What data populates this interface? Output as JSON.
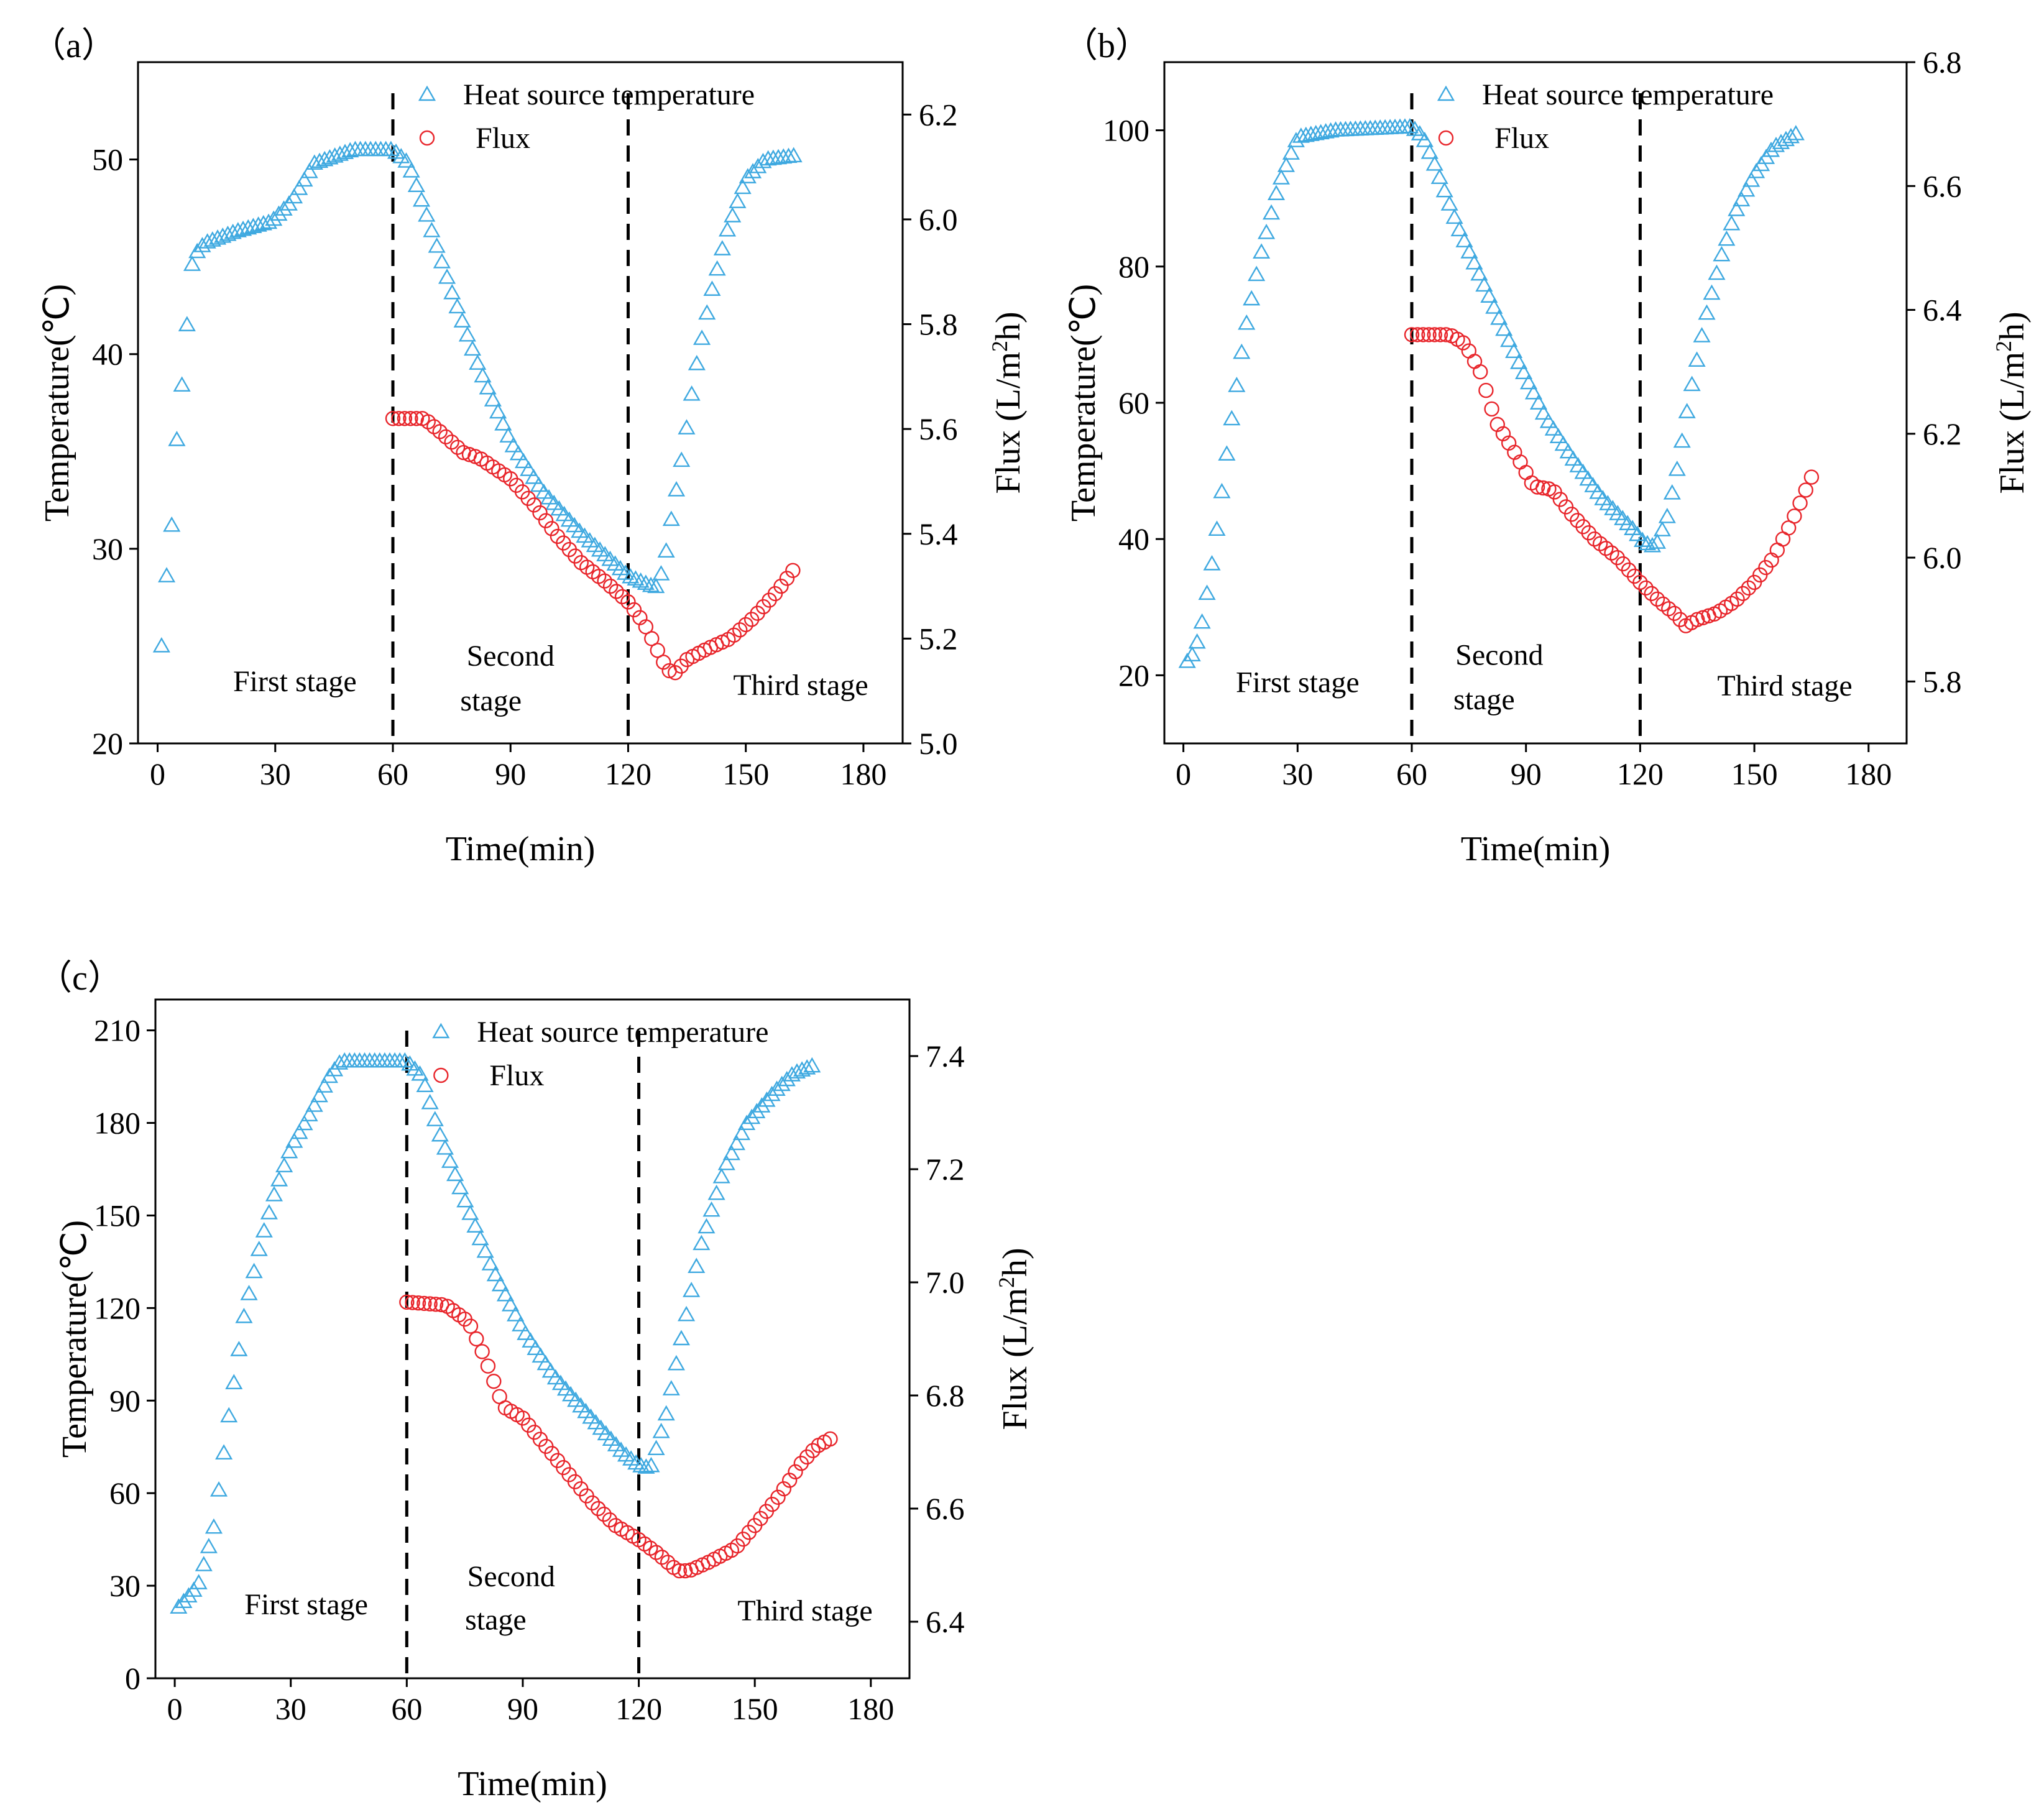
{
  "colors": {
    "temperature": "#3fa9e0",
    "flux": "#e8252b",
    "axis": "#000000"
  },
  "chart_data": [
    {
      "type": "scatter",
      "panel_label": "（a）",
      "xlabel": "Time(min)",
      "ylabel": "Temperature(℃)",
      "y2label": "Flux (L/m²h)",
      "y2label_parts": {
        "base": "Flux (L/m",
        "sup": "2",
        "tail": "h)"
      },
      "xlim": [
        -5,
        190
      ],
      "ylim": [
        20,
        55
      ],
      "y2lim": [
        5.0,
        6.3
      ],
      "xticks": [
        0,
        30,
        60,
        90,
        120,
        150,
        180
      ],
      "yticks": [
        20,
        30,
        40,
        50
      ],
      "y2ticks": [
        5.0,
        5.2,
        5.4,
        5.6,
        5.8,
        6.0,
        6.2
      ],
      "y2tick_labels": [
        "5.0",
        "5.2",
        "5.4",
        "5.6",
        "5.8",
        "6.0",
        "6.2"
      ],
      "stage_lines_x": [
        60,
        120
      ],
      "stages": [
        {
          "text": "First stage",
          "x": 35,
          "y": 23.2
        },
        {
          "text": "Second",
          "x": 90,
          "y": 24.5
        },
        {
          "text": "stage",
          "x": 85,
          "y": 22.2
        },
        {
          "text": "Third stage",
          "x": 164,
          "y": 23.0
        }
      ],
      "legend": [
        "Heat source temperature",
        "Flux"
      ],
      "series": [
        {
          "name": "Heat source temperature",
          "axis": "left",
          "marker": "triangle",
          "knots": [
            [
              1,
              25
            ],
            [
              2,
              28
            ],
            [
              3,
              30
            ],
            [
              4,
              32
            ],
            [
              5,
              36
            ],
            [
              6,
              38
            ],
            [
              7,
              40
            ],
            [
              8,
              43
            ],
            [
              9,
              45
            ],
            [
              12,
              45.7
            ],
            [
              20,
              46.3
            ],
            [
              29,
              46.8
            ],
            [
              34,
              47.8
            ],
            [
              40,
              49.8
            ],
            [
              50,
              50.5
            ],
            [
              60,
              50.5
            ],
            [
              64,
              49.8
            ],
            [
              68,
              47.5
            ],
            [
              75,
              43.2
            ],
            [
              82,
              39.3
            ],
            [
              90,
              35.5
            ],
            [
              98,
              33
            ],
            [
              108,
              30.8
            ],
            [
              120,
              28.6
            ],
            [
              127,
              28
            ],
            [
              129,
              29
            ],
            [
              131,
              31.5
            ],
            [
              134,
              35
            ],
            [
              137,
              39
            ],
            [
              141,
              43
            ],
            [
              145,
              46.2
            ],
            [
              150,
              49
            ],
            [
              155,
              50
            ],
            [
              163,
              50.2
            ]
          ]
        },
        {
          "name": "Flux",
          "axis": "right",
          "marker": "circle",
          "knots": [
            [
              60,
              5.62
            ],
            [
              68,
              5.62
            ],
            [
              72,
              5.595
            ],
            [
              78,
              5.555
            ],
            [
              82,
              5.545
            ],
            [
              90,
              5.505
            ],
            [
              96,
              5.455
            ],
            [
              102,
              5.395
            ],
            [
              108,
              5.345
            ],
            [
              114,
              5.31
            ],
            [
              120,
              5.27
            ],
            [
              124,
              5.23
            ],
            [
              130,
              5.14
            ],
            [
              132,
              5.135
            ],
            [
              135,
              5.16
            ],
            [
              140,
              5.18
            ],
            [
              146,
              5.2
            ],
            [
              152,
              5.24
            ],
            [
              158,
              5.29
            ],
            [
              162,
              5.33
            ]
          ]
        }
      ]
    },
    {
      "type": "scatter",
      "panel_label": "（b）",
      "xlabel": "Time(min)",
      "ylabel": "Temperature(℃)",
      "y2label": "Flux (L/m²h)",
      "y2label_parts": {
        "base": "Flux (L/m",
        "sup": "2",
        "tail": "h)"
      },
      "xlim": [
        -5,
        190
      ],
      "ylim": [
        10,
        110
      ],
      "y2lim": [
        5.7,
        6.8
      ],
      "xticks": [
        0,
        30,
        60,
        90,
        120,
        150,
        180
      ],
      "yticks": [
        20,
        40,
        60,
        80,
        100
      ],
      "y2ticks": [
        5.8,
        6.0,
        6.2,
        6.4,
        6.6,
        6.8
      ],
      "y2tick_labels": [
        "5.8",
        "6.0",
        "6.2",
        "6.4",
        "6.6",
        "6.8"
      ],
      "stage_lines_x": [
        60,
        120
      ],
      "stages": [
        {
          "text": "First stage",
          "x": 30,
          "y": 19
        },
        {
          "text": "Second",
          "x": 83,
          "y": 23
        },
        {
          "text": "stage",
          "x": 79,
          "y": 16.5
        },
        {
          "text": "Third stage",
          "x": 158,
          "y": 18.5
        }
      ],
      "legend": [
        "Heat source temperature",
        "Flux"
      ],
      "series": [
        {
          "name": "Heat source temperature",
          "axis": "left",
          "marker": "triangle",
          "knots": [
            [
              1,
              22
            ],
            [
              3,
              23.5
            ],
            [
              5,
              28
            ],
            [
              8,
              38
            ],
            [
              12,
              55
            ],
            [
              16,
              70
            ],
            [
              20,
              81
            ],
            [
              25,
              92
            ],
            [
              30,
              99
            ],
            [
              40,
              100
            ],
            [
              60,
              100.5
            ],
            [
              63,
              99
            ],
            [
              66,
              95
            ],
            [
              72,
              86
            ],
            [
              80,
              76
            ],
            [
              88,
              66
            ],
            [
              95,
              58
            ],
            [
              102,
              52
            ],
            [
              110,
              46
            ],
            [
              118,
              41.5
            ],
            [
              121,
              39.5
            ],
            [
              124,
              38.8
            ],
            [
              127,
              43
            ],
            [
              130,
              51
            ],
            [
              133,
              61
            ],
            [
              137,
              72
            ],
            [
              141,
              81
            ],
            [
              145,
              88
            ],
            [
              150,
              93.5
            ],
            [
              155,
              97.5
            ],
            [
              161,
              99.5
            ]
          ]
        },
        {
          "name": "Flux",
          "axis": "right",
          "marker": "circle",
          "knots": [
            [
              60,
              6.36
            ],
            [
              70,
              6.36
            ],
            [
              74,
              6.345
            ],
            [
              78,
              6.3
            ],
            [
              82,
              6.22
            ],
            [
              88,
              6.16
            ],
            [
              92,
              6.115
            ],
            [
              97,
              6.11
            ],
            [
              102,
              6.07
            ],
            [
              108,
              6.03
            ],
            [
              114,
              6.0
            ],
            [
              120,
              5.96
            ],
            [
              125,
              5.93
            ],
            [
              129,
              5.91
            ],
            [
              132,
              5.89
            ],
            [
              135,
              5.9
            ],
            [
              140,
              5.91
            ],
            [
              145,
              5.93
            ],
            [
              150,
              5.96
            ],
            [
              155,
              6.0
            ],
            [
              160,
              6.06
            ],
            [
              165,
              6.13
            ]
          ]
        }
      ]
    },
    {
      "type": "scatter",
      "panel_label": "（c）",
      "xlabel": "Time(min)",
      "ylabel": "Temperature(℃)",
      "y2label": "Flux (L/m²h)",
      "y2label_parts": {
        "base": "Flux (L/m",
        "sup": "2",
        "tail": "h)"
      },
      "xlim": [
        -5,
        190
      ],
      "ylim": [
        0,
        220
      ],
      "y2lim": [
        6.3,
        7.5
      ],
      "xticks": [
        0,
        30,
        60,
        90,
        120,
        150,
        180
      ],
      "yticks": [
        0,
        30,
        60,
        90,
        120,
        150,
        180,
        210
      ],
      "y2ticks": [
        6.4,
        6.6,
        6.8,
        7.0,
        7.2,
        7.4
      ],
      "y2tick_labels": [
        "6.4",
        "6.6",
        "6.8",
        "7.0",
        "7.2",
        "7.4"
      ],
      "stage_lines_x": [
        60,
        120
      ],
      "stages": [
        {
          "text": "First stage",
          "x": 34,
          "y": 24
        },
        {
          "text": "Second",
          "x": 87,
          "y": 33
        },
        {
          "text": "stage",
          "x": 83,
          "y": 19
        },
        {
          "text": "Third stage",
          "x": 163,
          "y": 22
        }
      ],
      "legend": [
        "Heat source temperature",
        "Flux"
      ],
      "series": [
        {
          "name": "Heat source temperature",
          "axis": "left",
          "marker": "triangle",
          "knots": [
            [
              1,
              23
            ],
            [
              6,
              30
            ],
            [
              10,
              48
            ],
            [
              14,
              85
            ],
            [
              18,
              118
            ],
            [
              22,
              140
            ],
            [
              26,
              158
            ],
            [
              30,
              172
            ],
            [
              35,
              183
            ],
            [
              40,
              195
            ],
            [
              43,
              200
            ],
            [
              60,
              200
            ],
            [
              64,
              195
            ],
            [
              68,
              178
            ],
            [
              75,
              155
            ],
            [
              82,
              133
            ],
            [
              90,
              113
            ],
            [
              98,
              98
            ],
            [
              108,
              84
            ],
            [
              116,
              73
            ],
            [
              120,
              69
            ],
            [
              123,
              68
            ],
            [
              127,
              85
            ],
            [
              131,
              110
            ],
            [
              136,
              140
            ],
            [
              142,
              165
            ],
            [
              148,
              180
            ],
            [
              155,
              190
            ],
            [
              160,
              196
            ],
            [
              166,
              199
            ]
          ]
        },
        {
          "name": "Flux",
          "axis": "right",
          "marker": "circle",
          "knots": [
            [
              60,
              6.965
            ],
            [
              70,
              6.96
            ],
            [
              76,
              6.93
            ],
            [
              80,
              6.87
            ],
            [
              85,
              6.78
            ],
            [
              90,
              6.76
            ],
            [
              96,
              6.71
            ],
            [
              102,
              6.66
            ],
            [
              108,
              6.61
            ],
            [
              114,
              6.57
            ],
            [
              120,
              6.545
            ],
            [
              125,
              6.52
            ],
            [
              130,
              6.49
            ],
            [
              133,
              6.49
            ],
            [
              138,
              6.505
            ],
            [
              145,
              6.53
            ],
            [
              150,
              6.57
            ],
            [
              156,
              6.62
            ],
            [
              162,
              6.68
            ],
            [
              166,
              6.71
            ],
            [
              170,
              6.725
            ]
          ]
        }
      ]
    }
  ]
}
